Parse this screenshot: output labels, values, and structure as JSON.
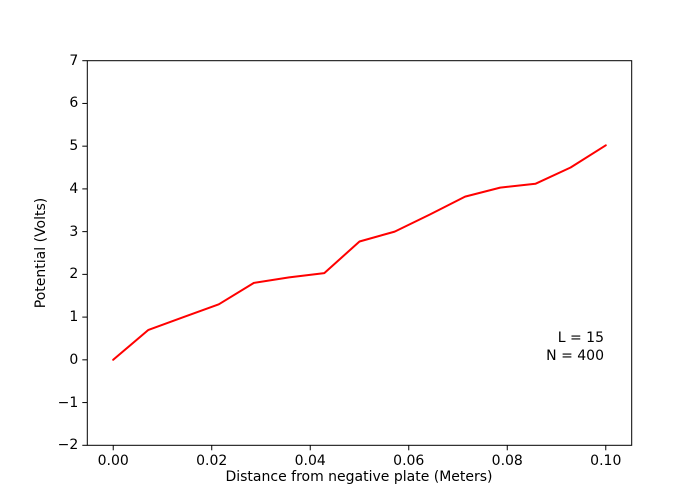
{
  "chart_data": {
    "type": "line",
    "title": "",
    "xlabel": "Distance from negative plate (Meters)",
    "ylabel": "Potential (Volts)",
    "xlim": [
      -0.005265,
      0.105265
    ],
    "ylim": [
      -2,
      7
    ],
    "grid": false,
    "legend_position": "none",
    "x_ticks": {
      "values": [
        0.0,
        0.02,
        0.04,
        0.06,
        0.08,
        0.1
      ],
      "labels": [
        "0.00",
        "0.02",
        "0.04",
        "0.06",
        "0.08",
        "0.10"
      ]
    },
    "y_ticks": {
      "values": [
        -2,
        -1,
        0,
        1,
        2,
        3,
        4,
        5,
        6,
        7
      ],
      "labels": [
        "−2",
        "−1",
        "0",
        "1",
        "2",
        "3",
        "4",
        "5",
        "6",
        "7"
      ]
    },
    "series": [
      {
        "name": "potential-vs-distance",
        "color": "#ff0000",
        "line_width": 2,
        "x": [
          0.0,
          0.00714,
          0.01429,
          0.02143,
          0.02857,
          0.03571,
          0.04286,
          0.05,
          0.05714,
          0.06429,
          0.07143,
          0.07857,
          0.08571,
          0.09286,
          0.1
        ],
        "y": [
          0.0,
          0.7,
          1.0,
          1.3,
          1.8,
          1.93,
          2.03,
          2.77,
          3.0,
          3.4,
          3.82,
          4.03,
          4.12,
          4.5,
          5.02
        ]
      }
    ],
    "annotations": [
      {
        "text": "L = 15"
      },
      {
        "text": "N = 400"
      }
    ],
    "spine_color": "#000000",
    "background_color": "#ffffff"
  }
}
